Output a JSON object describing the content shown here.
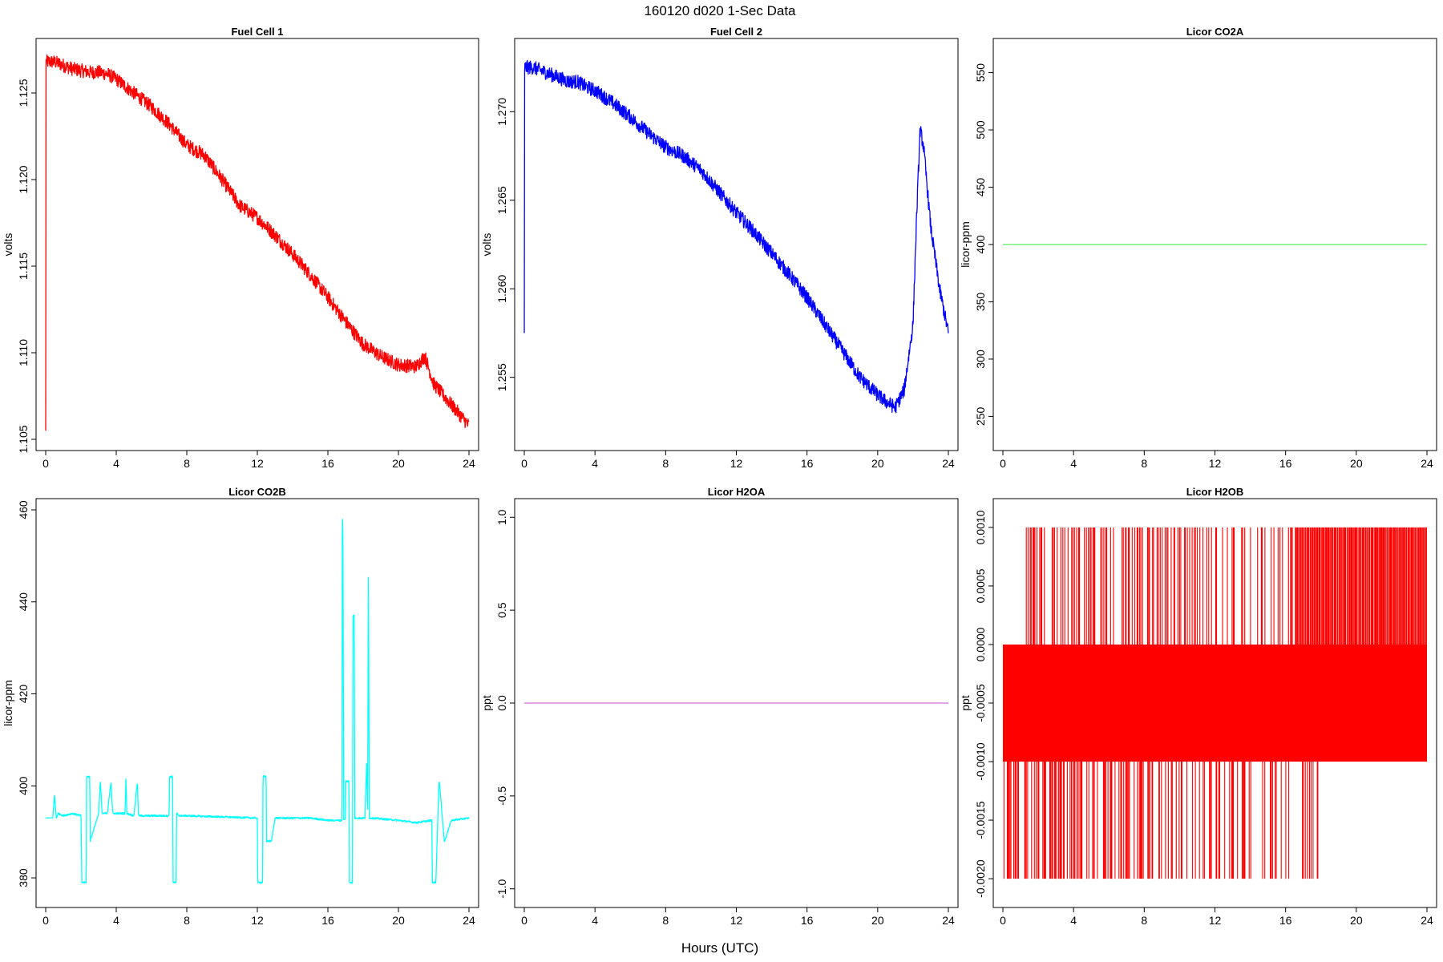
{
  "figure": {
    "title": "160120   d020   1-Sec Data",
    "xlabel": "Hours (UTC)"
  },
  "chart_data": [
    {
      "type": "line",
      "title": "Fuel Cell 1",
      "ylabel": "volts",
      "color": "#ff0000",
      "xlim": [
        0,
        24
      ],
      "ylim": [
        1.105,
        1.1275
      ],
      "xticks": [
        0,
        4,
        8,
        12,
        16,
        20,
        24
      ],
      "yticks": [
        1.105,
        1.11,
        1.115,
        1.12,
        1.125
      ],
      "ytick_labels": [
        "1.105",
        "1.110",
        "1.115",
        "1.120",
        "1.125"
      ],
      "noise": 0.0004,
      "x": [
        0,
        0.02,
        0.1,
        0.5,
        1.0,
        1.5,
        2.0,
        2.5,
        3.0,
        3.5,
        4.0,
        5.0,
        6.0,
        7.0,
        8.0,
        9.0,
        10.0,
        11.0,
        12.0,
        13.0,
        14.0,
        15.0,
        16.0,
        17.0,
        18.0,
        19.0,
        20.0,
        21.0,
        21.5,
        22.0,
        23.0,
        24.0
      ],
      "y": [
        1.1055,
        1.1268,
        1.1268,
        1.1268,
        1.1266,
        1.1264,
        1.1263,
        1.1262,
        1.1262,
        1.1261,
        1.1258,
        1.125,
        1.1242,
        1.1232,
        1.122,
        1.1214,
        1.12,
        1.1185,
        1.1178,
        1.1168,
        1.1157,
        1.1145,
        1.1132,
        1.1118,
        1.1105,
        1.1098,
        1.1093,
        1.1092,
        1.1098,
        1.1082,
        1.107,
        1.1058
      ]
    },
    {
      "type": "line",
      "title": "Fuel Cell 2",
      "ylabel": "volts",
      "color": "#0000ff",
      "xlim": [
        0,
        24
      ],
      "ylim": [
        1.2515,
        1.2735
      ],
      "xticks": [
        0,
        4,
        8,
        12,
        16,
        20,
        24
      ],
      "yticks": [
        1.255,
        1.26,
        1.265,
        1.27
      ],
      "ytick_labels": [
        "1.255",
        "1.260",
        "1.265",
        "1.270"
      ],
      "noise": 0.0004,
      "x": [
        0,
        0.02,
        0.1,
        0.5,
        1.0,
        1.5,
        2.0,
        2.5,
        3.0,
        3.5,
        4.0,
        5.0,
        6.0,
        7.0,
        8.0,
        9.0,
        10.0,
        11.0,
        12.0,
        13.0,
        14.0,
        15.0,
        16.0,
        17.0,
        18.0,
        19.0,
        20.0,
        20.5,
        21.0,
        21.5,
        22.0,
        22.2,
        22.4,
        22.6,
        23.0,
        23.5,
        24.0
      ],
      "y": [
        1.2575,
        1.2725,
        1.2725,
        1.2725,
        1.2723,
        1.2721,
        1.2719,
        1.2717,
        1.2717,
        1.2714,
        1.2712,
        1.2705,
        1.2697,
        1.2688,
        1.268,
        1.2675,
        1.2667,
        1.2655,
        1.2643,
        1.2632,
        1.262,
        1.2608,
        1.2595,
        1.258,
        1.2565,
        1.255,
        1.254,
        1.2536,
        1.2533,
        1.2543,
        1.258,
        1.264,
        1.269,
        1.268,
        1.2635,
        1.26,
        1.2575
      ]
    },
    {
      "type": "line",
      "title": "Licor CO2A",
      "ylabel": "licor-ppm",
      "color": "#77ee77",
      "xlim": [
        0,
        24
      ],
      "ylim": [
        230,
        570
      ],
      "xticks": [
        0,
        4,
        8,
        12,
        16,
        20,
        24
      ],
      "yticks": [
        250,
        300,
        350,
        400,
        450,
        500,
        550
      ],
      "ytick_labels": [
        "250",
        "300",
        "350",
        "400",
        "450",
        "500",
        "550"
      ],
      "noise": 0,
      "x": [
        0,
        24
      ],
      "y": [
        400,
        400
      ]
    },
    {
      "type": "line",
      "title": "Licor CO2B",
      "ylabel": "licor-ppm",
      "color": "#00ffff",
      "xlim": [
        0,
        24
      ],
      "ylim": [
        376,
        460
      ],
      "xticks": [
        0,
        4,
        8,
        12,
        16,
        20,
        24
      ],
      "yticks": [
        380,
        400,
        420,
        440,
        460
      ],
      "ytick_labels": [
        "380",
        "400",
        "420",
        "440",
        "460"
      ],
      "noise": 0.2,
      "x": [
        0,
        0.4,
        0.5,
        0.6,
        0.7,
        1.0,
        1.5,
        2.0,
        2.05,
        2.1,
        2.3,
        2.32,
        2.5,
        2.52,
        3.0,
        3.1,
        3.2,
        3.5,
        3.7,
        3.8,
        4.0,
        4.5,
        4.55,
        4.6,
        5.0,
        5.2,
        5.25,
        5.3,
        7.0,
        7.02,
        7.1,
        7.2,
        7.22,
        7.4,
        7.42,
        7.6,
        8.0,
        12.0,
        12.02,
        12.1,
        12.3,
        12.32,
        12.5,
        12.52,
        12.8,
        13.0,
        15.0,
        16.0,
        16.8,
        16.82,
        16.85,
        16.9,
        17.0,
        17.02,
        17.2,
        17.22,
        17.4,
        17.42,
        17.5,
        17.52,
        18.1,
        18.2,
        18.25,
        18.3,
        18.35,
        18.4,
        18.5,
        20.0,
        21.0,
        21.9,
        21.92,
        22.1,
        22.12,
        22.3,
        22.32,
        22.6,
        22.62,
        23.0,
        24.0
      ],
      "y": [
        393,
        393,
        398,
        393,
        394,
        393.5,
        394,
        393.5,
        379,
        379,
        379,
        402,
        402,
        388,
        394,
        401,
        394,
        394,
        401,
        394,
        394,
        394,
        402,
        394,
        393.5,
        401,
        394,
        393.5,
        393.5,
        402,
        402,
        402,
        379,
        379,
        394,
        393.5,
        393.5,
        393,
        379,
        379,
        379,
        402,
        402,
        388,
        388,
        393,
        393,
        392.5,
        392.5,
        458,
        458,
        392.5,
        393,
        401,
        401,
        379,
        379,
        437,
        437,
        393,
        393,
        405,
        393,
        448,
        393,
        393,
        393,
        392.5,
        392,
        392.5,
        379,
        379,
        379,
        401,
        401,
        388,
        388,
        392.5,
        393
      ]
    },
    {
      "type": "line",
      "title": "Licor H2OA",
      "ylabel": "ppt",
      "color": "#dd88dd",
      "xlim": [
        0,
        24
      ],
      "ylim": [
        -1.04,
        1.04
      ],
      "xticks": [
        0,
        4,
        8,
        12,
        16,
        20,
        24
      ],
      "yticks": [
        -1.0,
        -0.5,
        0.0,
        0.5,
        1.0
      ],
      "ytick_labels": [
        "-1.0",
        "-0.5",
        "0.0",
        "0.5",
        "1.0"
      ],
      "noise": 0,
      "x": [
        0,
        24
      ],
      "y": [
        0,
        0
      ]
    },
    {
      "type": "line",
      "title": "Licor H2OB",
      "ylabel": "ppt",
      "color": "#ff0000",
      "xlim": [
        0,
        24
      ],
      "ylim": [
        -0.00215,
        0.00115
      ],
      "xticks": [
        0,
        4,
        8,
        12,
        16,
        20,
        24
      ],
      "yticks": [
        -0.002,
        -0.0015,
        -0.001,
        -0.0005,
        0.0,
        0.0005,
        0.001
      ],
      "ytick_labels": [
        "-0.0020",
        "-0.0015",
        "-0.0010",
        "-0.0005",
        "0.0000",
        "0.0005",
        "0.0010"
      ],
      "band": {
        "x": [
          0,
          24
        ],
        "y": [
          -0.001,
          0.0
        ]
      },
      "spikes_up": {
        "y_from": 0.0,
        "y_to": 0.001,
        "x_start": 1.3,
        "x_end": 24,
        "x_dense_from": 16.5
      },
      "spikes_down": {
        "y_from": -0.001,
        "y_to": -0.002,
        "x_start": 0,
        "x_end": 18
      }
    }
  ]
}
